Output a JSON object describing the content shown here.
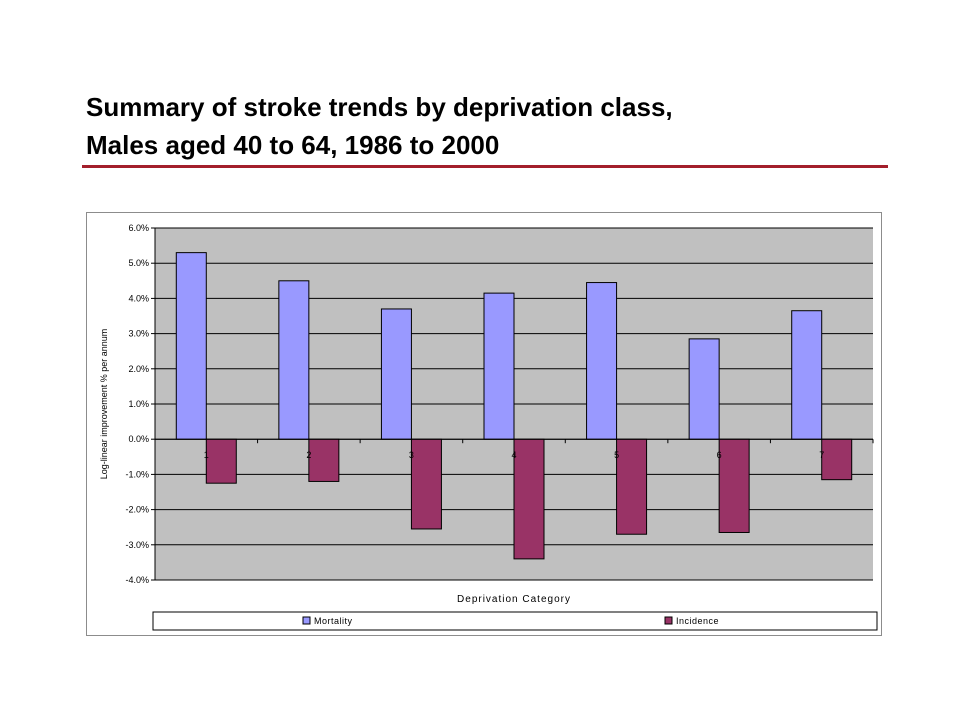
{
  "slide": {
    "title_line1": "Summary of stroke trends by deprivation class,",
    "title_line2": "Males aged 40 to 64, 1986 to 2000",
    "rule_color": "#a31f2b"
  },
  "chart_data": {
    "type": "bar",
    "title": "",
    "xlabel": "Deprivation Category",
    "ylabel": "Log-linear improvement % per annum",
    "categories": [
      "1",
      "2",
      "3",
      "4",
      "5",
      "6",
      "7"
    ],
    "series": [
      {
        "name": "Mortality",
        "color": "#9999ff",
        "values": [
          5.3,
          4.5,
          3.7,
          4.15,
          4.45,
          2.85,
          3.65
        ]
      },
      {
        "name": "Incidence",
        "color": "#993366",
        "values": [
          -1.25,
          -1.2,
          -2.55,
          -3.4,
          -2.7,
          -2.65,
          -1.15
        ]
      }
    ],
    "ylim": [
      -4.0,
      6.0
    ],
    "yticks": [
      "6.0%",
      "5.0%",
      "4.0%",
      "3.0%",
      "2.0%",
      "1.0%",
      "0.0%",
      "-1.0%",
      "-2.0%",
      "-3.0%",
      "-4.0%"
    ],
    "grid": true,
    "plot_background": "#c0c0c0",
    "legend_position": "bottom"
  }
}
